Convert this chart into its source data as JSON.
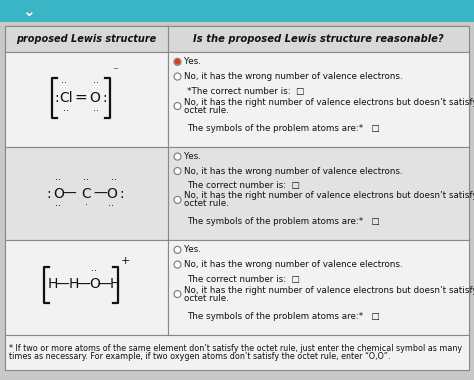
{
  "header_left": "proposed Lewis structure",
  "header_right": "Is the proposed Lewis structure reasonable?",
  "bg_color": "#c8c8c8",
  "table_bg_light": "#f2f2f2",
  "table_bg_dark": "#e2e2e2",
  "header_bg": "#d8d8d8",
  "border_color": "#888888",
  "text_color": "#111111",
  "teal_bar": "#3ab5c6",
  "row0_selected": 0,
  "rows": [
    {
      "options": [
        {
          "radio": true,
          "selected": true,
          "text": "Yes."
        },
        {
          "radio": true,
          "selected": false,
          "text": "No, it has the wrong number of valence electrons."
        },
        {
          "radio": false,
          "selected": false,
          "text": "*The correct number is:  □",
          "indent": true
        },
        {
          "radio": true,
          "selected": false,
          "text": "No, it has the right number of valence electrons but doesn’t satisfy the\noctet rule."
        },
        {
          "radio": false,
          "selected": false,
          "text": "The symbols of the problem atoms are:*   □",
          "indent": true
        }
      ]
    },
    {
      "options": [
        {
          "radio": true,
          "selected": false,
          "text": "Yes."
        },
        {
          "radio": true,
          "selected": false,
          "text": "No, it has the wrong number of valence electrons."
        },
        {
          "radio": false,
          "selected": false,
          "text": "The correct number is:  □",
          "indent": true
        },
        {
          "radio": true,
          "selected": false,
          "text": "No, it has the right number of valence electrons but doesn’t satisfy the\noctet rule."
        },
        {
          "radio": false,
          "selected": false,
          "text": "The symbols of the problem atoms are:*   □",
          "indent": true
        }
      ]
    },
    {
      "options": [
        {
          "radio": true,
          "selected": false,
          "text": "Yes."
        },
        {
          "radio": true,
          "selected": false,
          "text": "No, it has the wrong number of valence electrons."
        },
        {
          "radio": false,
          "selected": false,
          "text": "The correct number is:  □",
          "indent": true
        },
        {
          "radio": true,
          "selected": false,
          "text": "No, it has the right number of valence electrons but doesn’t satisfy the\noctet rule."
        },
        {
          "radio": false,
          "selected": false,
          "text": "The symbols of the problem atoms are:*   □",
          "indent": true
        }
      ]
    }
  ],
  "footnote_line1": "* If two or more atoms of the same element don’t satisfy the octet rule, just enter the chemical symbol as many",
  "footnote_line2": "times as necessary. For example, if two oxygen atoms don’t satisfy the octet rule, enter “O,O”."
}
